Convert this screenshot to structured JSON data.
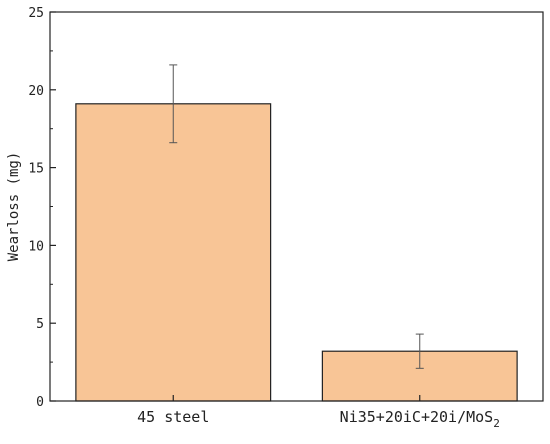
{
  "chart_data": {
    "type": "bar",
    "title": "",
    "xlabel": "",
    "ylabel": "Wearloss (mg)",
    "categories": [
      "45 steel",
      "Ni35+20iC+20i/MoS2"
    ],
    "category_display": [
      {
        "main": "45 steel",
        "sub": ""
      },
      {
        "main": "Ni35+20iC+20i/MoS",
        "sub": "2"
      }
    ],
    "values": [
      19.1,
      3.2
    ],
    "errors": [
      2.5,
      1.1
    ],
    "ylim": [
      0,
      25
    ],
    "yticks": [
      0,
      5,
      10,
      15,
      20,
      25
    ],
    "grid": false,
    "legend": "none",
    "colors": {
      "bar_fill": "#f8c596",
      "bar_stroke": "#222222",
      "axis": "#222222",
      "error": "#555555"
    }
  }
}
